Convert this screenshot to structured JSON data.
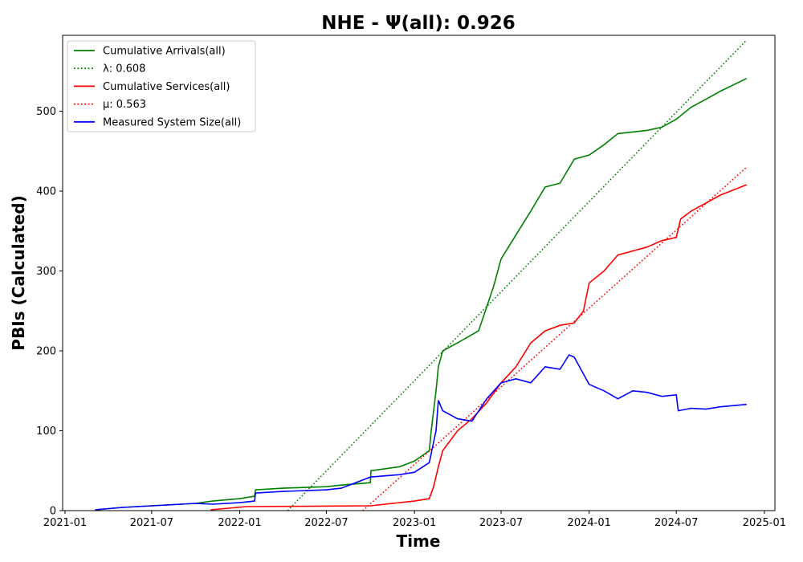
{
  "chart_data": {
    "type": "line",
    "title": "NHE -  Ψ(all): 0.926",
    "xlabel": "Time",
    "ylabel": "PBIs (Calculated)",
    "xlim": [
      "2020-12-27",
      "2025-01-23"
    ],
    "ylim": [
      0,
      595
    ],
    "x_ticks": [
      "2021-01",
      "2021-07",
      "2022-01",
      "2022-07",
      "2023-01",
      "2023-07",
      "2024-01",
      "2024-07",
      "2025-01"
    ],
    "y_ticks": [
      0,
      100,
      200,
      300,
      400,
      500
    ],
    "grid": false,
    "legend_position": "top-left",
    "series": [
      {
        "name": "Cumulative Arrivals(all)",
        "style": "solid",
        "color": "#008000",
        "x": [
          "2021-03-05",
          "2021-05-01",
          "2021-07-01",
          "2021-10-01",
          "2021-11-05",
          "2022-01-01",
          "2022-02-01",
          "2022-02-03",
          "2022-04-01",
          "2022-07-01",
          "2022-08-01",
          "2022-10-01",
          "2022-10-02",
          "2022-12-01",
          "2023-01-01",
          "2023-02-01",
          "2023-02-05",
          "2023-02-10",
          "2023-02-15",
          "2023-02-20",
          "2023-03-01",
          "2023-04-01",
          "2023-05-15",
          "2023-06-01",
          "2023-06-15",
          "2023-07-01",
          "2023-08-01",
          "2023-09-01",
          "2023-10-01",
          "2023-11-01",
          "2023-12-01",
          "2024-01-01",
          "2024-02-01",
          "2024-03-01",
          "2024-05-01",
          "2024-06-01",
          "2024-07-01",
          "2024-08-01",
          "2024-09-01",
          "2024-10-01",
          "2024-11-25"
        ],
        "y": [
          1,
          4,
          6,
          9,
          12,
          15,
          18,
          26,
          28,
          30,
          32,
          35,
          50,
          55,
          62,
          75,
          100,
          125,
          150,
          180,
          200,
          210,
          225,
          255,
          280,
          315,
          345,
          375,
          405,
          410,
          440,
          445,
          458,
          472,
          476,
          480,
          490,
          505,
          515,
          525,
          541
        ]
      },
      {
        "name": "λ: 0.608",
        "style": "dotted",
        "color": "#008000",
        "x": [
          "2022-04-11",
          "2024-11-25"
        ],
        "y": [
          0,
          589
        ]
      },
      {
        "name": "Cumulative Services(all)",
        "style": "solid",
        "color": "#ff0000",
        "x": [
          "2021-11-01",
          "2022-01-15",
          "2022-10-01",
          "2023-01-01",
          "2023-02-01",
          "2023-02-10",
          "2023-02-20",
          "2023-03-01",
          "2023-04-01",
          "2023-05-01",
          "2023-06-01",
          "2023-07-01",
          "2023-08-01",
          "2023-09-01",
          "2023-10-01",
          "2023-11-01",
          "2023-12-01",
          "2023-12-20",
          "2024-01-01",
          "2024-02-01",
          "2024-03-01",
          "2024-04-01",
          "2024-05-01",
          "2024-06-01",
          "2024-07-01",
          "2024-07-10",
          "2024-08-01",
          "2024-09-01",
          "2024-10-01",
          "2024-11-25"
        ],
        "y": [
          1,
          5,
          6,
          12,
          15,
          30,
          55,
          75,
          100,
          115,
          135,
          160,
          180,
          210,
          225,
          232,
          235,
          250,
          285,
          300,
          320,
          325,
          330,
          338,
          342,
          365,
          375,
          385,
          395,
          408
        ]
      },
      {
        "name": "μ: 0.563",
        "style": "dotted",
        "color": "#ff0000",
        "x": [
          "2022-09-15",
          "2024-11-25"
        ],
        "y": [
          0,
          430
        ]
      },
      {
        "name": "Measured System Size(all)",
        "style": "solid",
        "color": "#0000ff",
        "x": [
          "2021-03-05",
          "2021-05-01",
          "2021-07-01",
          "2021-10-01",
          "2021-11-05",
          "2022-01-01",
          "2022-02-01",
          "2022-02-03",
          "2022-04-01",
          "2022-07-01",
          "2022-08-01",
          "2022-10-01",
          "2022-12-01",
          "2023-01-01",
          "2023-02-01",
          "2023-02-15",
          "2023-02-20",
          "2023-03-01",
          "2023-04-01",
          "2023-05-01",
          "2023-06-01",
          "2023-07-01",
          "2023-08-01",
          "2023-09-01",
          "2023-10-01",
          "2023-11-01",
          "2023-11-20",
          "2023-12-01",
          "2024-01-01",
          "2024-02-01",
          "2024-03-01",
          "2024-04-01",
          "2024-05-01",
          "2024-06-01",
          "2024-07-01",
          "2024-07-05",
          "2024-08-01",
          "2024-09-01",
          "2024-10-01",
          "2024-11-25"
        ],
        "y": [
          1,
          4,
          6,
          9,
          8,
          10,
          12,
          22,
          24,
          26,
          28,
          42,
          45,
          48,
          60,
          100,
          138,
          125,
          115,
          112,
          140,
          160,
          165,
          160,
          180,
          177,
          195,
          192,
          158,
          150,
          140,
          150,
          148,
          143,
          145,
          125,
          128,
          127,
          130,
          133
        ]
      }
    ]
  }
}
